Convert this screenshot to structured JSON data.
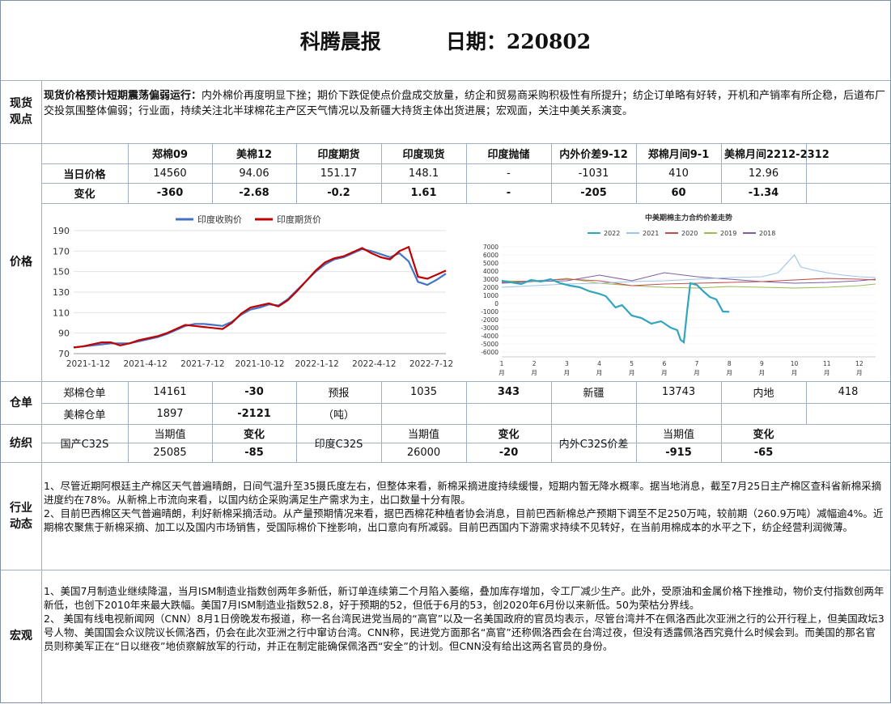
{
  "header": {
    "title": "科腾晨报",
    "date_label": "日期：220802"
  },
  "spot": {
    "label": "现货\n观点",
    "headline": "现货价格预计短期震荡偏弱运行：",
    "text": "内外棉价再度明显下挫；期价下跌促使点价盘成交放量，纺企和贸易商采购积极性有所提升；纺企订单略有好转，开机和产销率有所企稳，后道布厂交投氛围整体偏弱；行业面，持续关注北半球棉花主产区天气情况以及新疆大持货主体出货进展；宏观面，关注中美关系演变。"
  },
  "price": {
    "label": "价格",
    "headers": [
      "郑棉09",
      "美棉12",
      "印度期货",
      "印度现货",
      "印度抛储",
      "内外价差9-12",
      "郑棉月间9-1",
      "美棉月间2212-2312"
    ],
    "row_today": {
      "label": "当日价格",
      "values": [
        "14560",
        "94.06",
        "151.17",
        "148.1",
        "-",
        "-1031",
        "410",
        "12.96"
      ]
    },
    "row_change": {
      "label": "变化",
      "values": [
        "-360",
        "-2.68",
        "-0.2",
        "1.61",
        "-",
        "-205",
        "60",
        "-1.34"
      ]
    }
  },
  "chart_data": [
    {
      "type": "line",
      "title": "",
      "legend": [
        "印度收购价",
        "印度期货价"
      ],
      "legend_placement": "top",
      "colors": [
        "#4472c4",
        "#c00000"
      ],
      "x_ticks": [
        "2021-1-12",
        "2021-4-12",
        "2021-7-12",
        "2021-10-12",
        "2022-1-12",
        "2022-4-12",
        "2022-7-12"
      ],
      "ylim": [
        70,
        190
      ],
      "y_ticks": [
        70,
        90,
        110,
        130,
        150,
        170,
        190
      ],
      "series": [
        {
          "name": "印度收购价",
          "x": [
            0,
            5,
            10,
            15,
            20,
            25,
            30,
            35,
            40,
            45,
            50,
            55,
            60,
            65,
            70,
            75,
            80,
            85,
            90,
            95,
            100,
            105,
            110,
            115,
            120,
            125,
            130,
            135,
            140,
            145,
            150,
            155,
            160,
            165,
            170,
            175,
            180,
            185,
            190,
            195,
            200
          ],
          "y": [
            76,
            77,
            78,
            79,
            80,
            80,
            80,
            82,
            84,
            86,
            89,
            93,
            97,
            99,
            99,
            98,
            97,
            101,
            108,
            113,
            115,
            118,
            117,
            123,
            132,
            141,
            150,
            157,
            162,
            164,
            168,
            172,
            170,
            167,
            164,
            168,
            160,
            140,
            137,
            142,
            148
          ]
        },
        {
          "name": "印度期货价",
          "x": [
            0,
            5,
            10,
            15,
            20,
            25,
            30,
            35,
            40,
            45,
            50,
            55,
            60,
            65,
            70,
            75,
            80,
            85,
            90,
            95,
            100,
            105,
            110,
            115,
            120,
            125,
            130,
            135,
            140,
            145,
            150,
            155,
            160,
            165,
            170,
            175,
            180,
            185,
            190,
            195,
            200
          ],
          "y": [
            76,
            77,
            79,
            81,
            81,
            78,
            80,
            83,
            85,
            87,
            90,
            94,
            98,
            97,
            96,
            95,
            94,
            100,
            109,
            115,
            117,
            119,
            116,
            122,
            131,
            141,
            151,
            159,
            163,
            165,
            169,
            173,
            168,
            164,
            162,
            170,
            174,
            145,
            143,
            147,
            151
          ]
        }
      ]
    },
    {
      "type": "line",
      "title": "中美期棉主力合约价差走势",
      "legend": [
        "2022",
        "2021",
        "2020",
        "2019",
        "2018"
      ],
      "colors": [
        "#31a4c0",
        "#9dc3e6",
        "#c0504d",
        "#9bbb59",
        "#7f5fa8"
      ],
      "x_ticks": [
        "1月",
        "2月",
        "3月",
        "4月",
        "5月",
        "6月",
        "7月",
        "8月",
        "9月",
        "10月",
        "11月",
        "12月"
      ],
      "ylim": [
        -6000,
        7000
      ],
      "y_ticks": [
        7000,
        6000,
        5000,
        4000,
        3000,
        2000,
        1000,
        0,
        -1000,
        -2000,
        -3000,
        -4000,
        -5000,
        -6000
      ],
      "series": [
        {
          "name": "2022",
          "x": [
            0,
            0.3,
            0.6,
            0.9,
            1.2,
            1.5,
            1.8,
            2.1,
            2.4,
            2.7,
            3.0,
            3.2,
            3.5,
            3.7,
            4.0,
            4.3,
            4.6,
            4.9,
            5.2,
            5.4,
            5.5,
            5.6,
            5.7,
            5.8,
            6.0,
            6.2,
            6.4,
            6.6,
            6.8,
            7.0
          ],
          "y": [
            2800,
            2600,
            2400,
            2900,
            2700,
            3000,
            2500,
            2200,
            2000,
            1500,
            1200,
            900,
            -500,
            -200,
            -1500,
            -1800,
            -2500,
            -2200,
            -3000,
            -3300,
            -4500,
            -4800,
            -1000,
            2500,
            2300,
            1500,
            800,
            500,
            -1000,
            -1030
          ]
        },
        {
          "name": "2021",
          "x": [
            0,
            1,
            2,
            3,
            4,
            5,
            6,
            7,
            8,
            8.5,
            9,
            9.2,
            9.5,
            10,
            10.5,
            11,
            11.5
          ],
          "y": [
            2000,
            2200,
            2400,
            2500,
            2700,
            2800,
            3000,
            3200,
            3300,
            3800,
            6000,
            4500,
            4200,
            3800,
            3500,
            3300,
            3200
          ]
        },
        {
          "name": "2020",
          "x": [
            0,
            1,
            2,
            3,
            4,
            5,
            6,
            7,
            8,
            9,
            10,
            11,
            11.5
          ],
          "y": [
            2600,
            2800,
            3000,
            2800,
            2200,
            2400,
            2500,
            2600,
            2700,
            2900,
            3100,
            3000,
            2900
          ]
        },
        {
          "name": "2019",
          "x": [
            0,
            1,
            2,
            3,
            4,
            5,
            6,
            7,
            8,
            9,
            10,
            11,
            11.5
          ],
          "y": [
            2800,
            2700,
            3100,
            2500,
            2200,
            2000,
            1900,
            2100,
            2000,
            1900,
            2000,
            2200,
            2400
          ]
        },
        {
          "name": "2018",
          "x": [
            0,
            1,
            2,
            3,
            4,
            5,
            6,
            7,
            8,
            9,
            10,
            11,
            11.5
          ],
          "y": [
            2500,
            2700,
            2800,
            3500,
            2800,
            3800,
            3300,
            3000,
            2700,
            2500,
            2600,
            2800,
            3000
          ]
        }
      ]
    }
  ],
  "warehouse": {
    "label": "仓单",
    "r1": [
      "郑棉仓单",
      "14161",
      "-30",
      "预报",
      "1035",
      "343",
      "新疆",
      "13743",
      "内地",
      "418"
    ],
    "r2": [
      "美棉仓单",
      "1897",
      "-2121",
      "（吨）"
    ]
  },
  "spinning": {
    "label": "纺织",
    "domestic": "国产C32S",
    "india": "印度C32S",
    "spread": "内外C32S价差",
    "h_value": "当期值",
    "h_change": "变化",
    "v": [
      "25085",
      "-85",
      "26000",
      "-20",
      "-915",
      "-65"
    ]
  },
  "industry": {
    "label": "行业\n动态",
    "p1": "1、尽管近期阿根廷主产棉区天气普遍晴朗，日间气温升至35摄氏度左右，但整体来看，新棉采摘进度持续缓慢，短期内暂无降水概率。据当地消息，截至7月25日主产棉区查科省新棉采摘进度约在78%。从新棉上市流向来看，以国内纺企采购满足生产需求为主，出口数量十分有限。",
    "p2": "2、目前巴西棉区天气普遍晴朗，利好新棉采摘活动。从产量预期情况来看，据巴西棉花种植者协会消息，目前巴西新棉总产预期下调至不足250万吨，较前期（260.9万吨）减幅逾4%。近期棉农聚焦于新棉采摘、加工以及国内市场销售，受国际棉价下挫影响，出口意向有所减弱。目前巴西国内下游需求持续不见转好，在当前用棉成本的水平之下，纺企经营利润微薄。"
  },
  "macro": {
    "label": "宏观",
    "p1": "1、美国7月制造业继续降温，当月ISM制造业指数创两年多新低，新订单连续第二个月陷入萎缩，叠加库存增加，令工厂减少生产。此外，受原油和金属价格下挫推动，物价支付指数创两年新低，也创下2010年来最大跌幅。美国7月ISM制造业指数52.8，好于预期的52，但低于6月的53，创2020年6月份以来新低。50为荣枯分界线。",
    "p2": "2、 美国有线电视新闻网（CNN）8月1日傍晚发布报道，称一名台湾民进党当局的“高官”以及一名美国政府的官员均表示，尽管台湾并不在佩洛西此次亚洲之行的公开行程上，但美国政坛3号人物、美国国会众议院议长佩洛西，仍会在此次亚洲之行中窜访台湾。CNN称，民进党方面那名“高官”还称佩洛西会在台湾过夜，但没有透露佩洛西究竟什么时候会到。而美国的那名官员则称美军正在“日以继夜”地侦察解放军的行动，并正在制定能确保佩洛西“安全”的计划。但CNN没有给出这两名官员的身份。"
  }
}
